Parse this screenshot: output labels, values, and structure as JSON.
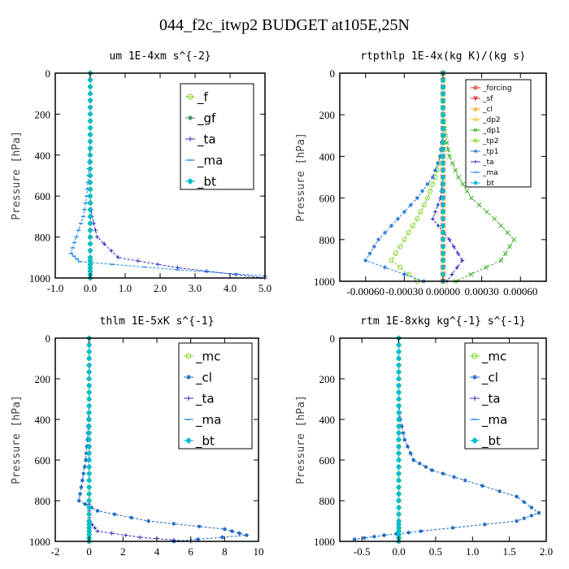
{
  "page": {
    "title": "044_f2c_itwp2  BUDGET at105E,25N"
  },
  "colors": {
    "forcing": "#e0211a",
    "sf": "#e02020",
    "cl_orange": "#f5a623",
    "dp2": "#f3c623",
    "dp1": "#3cb027",
    "tp2": "#7ed321",
    "tp1": "#3377dd",
    "ta": "#2a2ac0",
    "ma": "#1e88e5",
    "bt": "#00bcd4",
    "f": "#7ed321",
    "gf": "#2e8b57",
    "mc": "#7ed321",
    "cl_blue": "#1565c0"
  },
  "chart_data": [
    {
      "type": "line",
      "title": "um  1E-4xm s^{-2}",
      "ylabel": "Pressure [hPa]",
      "xlim": [
        -1.0,
        5.0
      ],
      "ylim": [
        1000,
        0
      ],
      "xticks": [
        "-1.0",
        "0.0",
        "1.0",
        "2.0",
        "3.0",
        "4.0",
        "5.0"
      ],
      "xtick_values": [
        -1,
        0,
        1,
        2,
        3,
        4,
        5
      ],
      "yticks": [
        "0",
        "200",
        "400",
        "600",
        "800",
        "1000"
      ],
      "ytick_values": [
        0,
        200,
        400,
        600,
        800,
        1000
      ],
      "legend": [
        "_f",
        "_gf",
        "_ta",
        "_ma",
        "_bt"
      ],
      "series": [
        {
          "name": "_f",
          "color": "#7ed321",
          "marker": "o",
          "x": [
            0,
            0,
            0,
            0,
            0,
            0,
            0,
            0,
            0,
            0,
            0,
            0
          ],
          "y": [
            0,
            100,
            200,
            300,
            400,
            500,
            600,
            700,
            800,
            900,
            950,
            1000
          ]
        },
        {
          "name": "_gf",
          "color": "#2e8b57",
          "marker": "*",
          "x": [
            0,
            0,
            0,
            0,
            0,
            0,
            0,
            0,
            0,
            0,
            0,
            0
          ],
          "y": [
            0,
            100,
            200,
            300,
            400,
            500,
            600,
            700,
            800,
            900,
            950,
            1000
          ]
        },
        {
          "name": "_ta",
          "color": "#2a2ac0",
          "marker": "+",
          "x": [
            0,
            0,
            0,
            0,
            0,
            0,
            0,
            0.05,
            0.2,
            0.8,
            2.5,
            5.0
          ],
          "y": [
            0,
            100,
            200,
            300,
            400,
            500,
            600,
            700,
            800,
            900,
            950,
            1000
          ]
        },
        {
          "name": "_ma",
          "color": "#1e88e5",
          "marker": "-",
          "x": [
            0,
            0,
            0,
            0,
            -0.02,
            -0.05,
            -0.1,
            -0.2,
            -0.4,
            -0.55,
            -0.3,
            2.5,
            5.0
          ],
          "y": [
            0,
            100,
            200,
            300,
            400,
            500,
            600,
            700,
            800,
            880,
            920,
            960,
            990
          ]
        },
        {
          "name": "_bt",
          "color": "#00bcd4",
          "marker": "diamond",
          "x": [
            0,
            0,
            0,
            0,
            0,
            0,
            0,
            0,
            0,
            0,
            0,
            0
          ],
          "y": [
            0,
            100,
            200,
            300,
            400,
            500,
            600,
            700,
            800,
            900,
            950,
            1000
          ]
        }
      ]
    },
    {
      "type": "line",
      "title": "rtpthlp  1E-4x(kg K)/(kg s)",
      "ylabel": "Pressure [hPa]",
      "xlim": [
        -0.0008,
        0.0008
      ],
      "ylim": [
        1000,
        0
      ],
      "xticks": [
        "-0.00060",
        "-0.00030",
        "0.00000",
        "0.00030",
        "0.00060"
      ],
      "xtick_values": [
        -0.0006,
        -0.0003,
        0.0,
        0.0003,
        0.0006
      ],
      "yticks": [
        "0",
        "200",
        "400",
        "600",
        "800",
        "1000"
      ],
      "ytick_values": [
        0,
        200,
        400,
        600,
        800,
        1000
      ],
      "legend": [
        "_forcing",
        "_sf",
        "_cl",
        "_dp2",
        "_dp1",
        "_tp2",
        "_tp1",
        "_ta",
        "_ma",
        "_bt"
      ],
      "series": [
        {
          "name": "_forcing",
          "color": "#e0211a",
          "marker": "o",
          "x": [
            0,
            0,
            0,
            0,
            0,
            0,
            0,
            0,
            0,
            0,
            0
          ],
          "y": [
            0,
            100,
            200,
            300,
            400,
            500,
            600,
            700,
            800,
            900,
            1000
          ]
        },
        {
          "name": "_sf",
          "color": "#e02020",
          "marker": "v",
          "x": [
            0,
            0,
            0,
            0,
            0,
            0,
            0,
            0,
            0,
            0,
            0
          ],
          "y": [
            0,
            100,
            200,
            300,
            400,
            500,
            600,
            700,
            800,
            900,
            1000
          ]
        },
        {
          "name": "_cl",
          "color": "#f5a623",
          "marker": "^",
          "x": [
            0,
            0,
            0,
            0,
            0,
            0,
            0,
            0,
            0,
            0,
            0
          ],
          "y": [
            0,
            100,
            200,
            300,
            400,
            500,
            600,
            700,
            800,
            900,
            1000
          ]
        },
        {
          "name": "_dp2",
          "color": "#f3c623",
          "marker": "o",
          "x": [
            0,
            0,
            0,
            0,
            0,
            0,
            0,
            0,
            0,
            0,
            0
          ],
          "y": [
            0,
            100,
            200,
            300,
            400,
            500,
            600,
            700,
            800,
            900,
            1000
          ]
        },
        {
          "name": "_dp1",
          "color": "#3cb027",
          "marker": "x",
          "x": [
            0,
            0,
            0,
            2e-05,
            5e-05,
            0.00012,
            0.00022,
            0.0004,
            0.00055,
            0.00045,
            0.0001
          ],
          "y": [
            0,
            100,
            200,
            300,
            400,
            500,
            600,
            700,
            800,
            900,
            1000
          ]
        },
        {
          "name": "_tp2",
          "color": "#7ed321",
          "marker": "o",
          "x": [
            0,
            0,
            0,
            0,
            -2e-05,
            -6e-05,
            -0.00012,
            -0.0002,
            -0.0003,
            -0.0004,
            -0.0002
          ],
          "y": [
            0,
            100,
            200,
            300,
            400,
            500,
            600,
            700,
            800,
            900,
            1000
          ]
        },
        {
          "name": "_tp1",
          "color": "#3377dd",
          "marker": "*",
          "x": [
            0,
            0,
            0,
            0,
            -2e-05,
            -8e-05,
            -0.0002,
            -0.00035,
            -0.0005,
            -0.0006,
            -0.00015
          ],
          "y": [
            0,
            100,
            200,
            300,
            400,
            500,
            600,
            700,
            800,
            900,
            1000
          ]
        },
        {
          "name": "_ta",
          "color": "#2a2ac0",
          "marker": "+",
          "x": [
            0,
            0,
            0,
            0,
            0,
            0,
            -2e-05,
            -8e-05,
            5e-05,
            0.00015,
            3e-05
          ],
          "y": [
            0,
            100,
            200,
            300,
            400,
            500,
            600,
            700,
            800,
            900,
            1000
          ]
        },
        {
          "name": "_ma",
          "color": "#1e88e5",
          "marker": "-",
          "x": [
            0,
            0,
            0,
            0,
            0,
            0,
            0,
            0,
            0,
            0,
            0
          ],
          "y": [
            0,
            100,
            200,
            300,
            400,
            500,
            600,
            700,
            800,
            900,
            1000
          ]
        },
        {
          "name": "_bt",
          "color": "#00bcd4",
          "marker": "diamond",
          "x": [
            0,
            0,
            0,
            0,
            0,
            0,
            0,
            0,
            0,
            0,
            0
          ],
          "y": [
            0,
            100,
            200,
            300,
            400,
            500,
            600,
            700,
            800,
            900,
            1000
          ]
        }
      ]
    },
    {
      "type": "line",
      "title": "thlm  1E-5xK s^{-1}",
      "ylabel": "Pressure [hPa]",
      "xlim": [
        -2,
        10
      ],
      "ylim": [
        1000,
        0
      ],
      "xticks": [
        "-2",
        "0",
        "2",
        "4",
        "6",
        "8",
        "10"
      ],
      "xtick_values": [
        -2,
        0,
        2,
        4,
        6,
        8,
        10
      ],
      "yticks": [
        "0",
        "200",
        "400",
        "600",
        "800",
        "1000"
      ],
      "ytick_values": [
        0,
        200,
        400,
        600,
        800,
        1000
      ],
      "legend": [
        "_mc",
        "_cl",
        "_ta",
        "_ma",
        "_bt"
      ],
      "series": [
        {
          "name": "_mc",
          "color": "#7ed321",
          "marker": "o",
          "x": [
            0,
            0,
            0,
            0,
            0,
            0,
            0,
            0,
            0,
            0,
            0,
            0
          ],
          "y": [
            0,
            100,
            200,
            300,
            400,
            500,
            600,
            700,
            800,
            900,
            950,
            1000
          ]
        },
        {
          "name": "_cl",
          "color": "#1565c0",
          "marker": "*",
          "x": [
            0,
            0,
            0,
            0,
            -0.05,
            -0.1,
            -0.2,
            -0.4,
            -0.6,
            0.5,
            3.5,
            8.0,
            9.3,
            5.0
          ],
          "y": [
            0,
            100,
            200,
            300,
            400,
            500,
            600,
            700,
            800,
            850,
            900,
            940,
            970,
            1000
          ]
        },
        {
          "name": "_ta",
          "color": "#2a2ac0",
          "marker": "+",
          "x": [
            0,
            0,
            0,
            0,
            0,
            0,
            0,
            0,
            0,
            0,
            0,
            0.5,
            3.0,
            6.0
          ],
          "y": [
            0,
            100,
            200,
            300,
            400,
            500,
            600,
            700,
            800,
            850,
            900,
            950,
            980,
            1000
          ]
        },
        {
          "name": "_ma",
          "color": "#1e88e5",
          "marker": "-",
          "x": [
            0,
            0,
            0,
            0,
            0,
            0,
            0,
            0,
            0,
            0,
            0,
            0
          ],
          "y": [
            0,
            100,
            200,
            300,
            400,
            500,
            600,
            700,
            800,
            900,
            950,
            1000
          ]
        },
        {
          "name": "_bt",
          "color": "#00bcd4",
          "marker": "diamond",
          "x": [
            0,
            0,
            0,
            0,
            0,
            0,
            0,
            0,
            0,
            0,
            0,
            0
          ],
          "y": [
            0,
            100,
            200,
            300,
            400,
            500,
            600,
            700,
            800,
            900,
            950,
            1000
          ]
        }
      ]
    },
    {
      "type": "line",
      "title": "rtm  1E-8xkg kg^{-1} s^{-1}",
      "ylabel": "Pressure [hPa]",
      "xlim": [
        -0.8,
        2.0
      ],
      "ylim": [
        1000,
        0
      ],
      "xticks": [
        "-0.5",
        "0.0",
        "0.5",
        "1.0",
        "1.5",
        "2.0"
      ],
      "xtick_values": [
        -0.5,
        0.0,
        0.5,
        1.0,
        1.5,
        2.0
      ],
      "yticks": [
        "0",
        "200",
        "400",
        "600",
        "800",
        "1000"
      ],
      "ytick_values": [
        0,
        200,
        400,
        600,
        800,
        1000
      ],
      "legend": [
        "_mc",
        "_cl",
        "_ta",
        "_ma",
        "_bt"
      ],
      "series": [
        {
          "name": "_mc",
          "color": "#7ed321",
          "marker": "o",
          "x": [
            0,
            0,
            0,
            0,
            0,
            0,
            0,
            0,
            0,
            0,
            0,
            0
          ],
          "y": [
            0,
            100,
            200,
            300,
            400,
            500,
            600,
            700,
            800,
            900,
            950,
            1000
          ]
        },
        {
          "name": "_cl",
          "color": "#1565c0",
          "marker": "*",
          "x": [
            0,
            0,
            0,
            0,
            0.02,
            0.08,
            0.2,
            0.45,
            0.9,
            1.6,
            1.9,
            1.6,
            0.3,
            -0.2,
            -0.6
          ],
          "y": [
            0,
            100,
            200,
            300,
            400,
            500,
            600,
            650,
            700,
            780,
            860,
            900,
            950,
            970,
            990
          ]
        },
        {
          "name": "_ta",
          "color": "#2a2ac0",
          "marker": "+",
          "x": [
            0,
            0,
            0,
            0,
            0,
            0,
            0,
            0,
            0,
            0,
            0,
            0
          ],
          "y": [
            0,
            100,
            200,
            300,
            400,
            500,
            600,
            700,
            800,
            900,
            950,
            1000
          ]
        },
        {
          "name": "_ma",
          "color": "#1e88e5",
          "marker": "-",
          "x": [
            0,
            0,
            0,
            0,
            0,
            0,
            0,
            0,
            0,
            0,
            0,
            0
          ],
          "y": [
            0,
            100,
            200,
            300,
            400,
            500,
            600,
            700,
            800,
            900,
            950,
            1000
          ]
        },
        {
          "name": "_bt",
          "color": "#00bcd4",
          "marker": "diamond",
          "x": [
            0,
            0,
            0,
            0,
            0,
            0,
            0,
            0,
            0,
            0,
            0,
            0
          ],
          "y": [
            0,
            100,
            200,
            300,
            400,
            500,
            600,
            700,
            800,
            900,
            950,
            1000
          ]
        }
      ]
    }
  ]
}
